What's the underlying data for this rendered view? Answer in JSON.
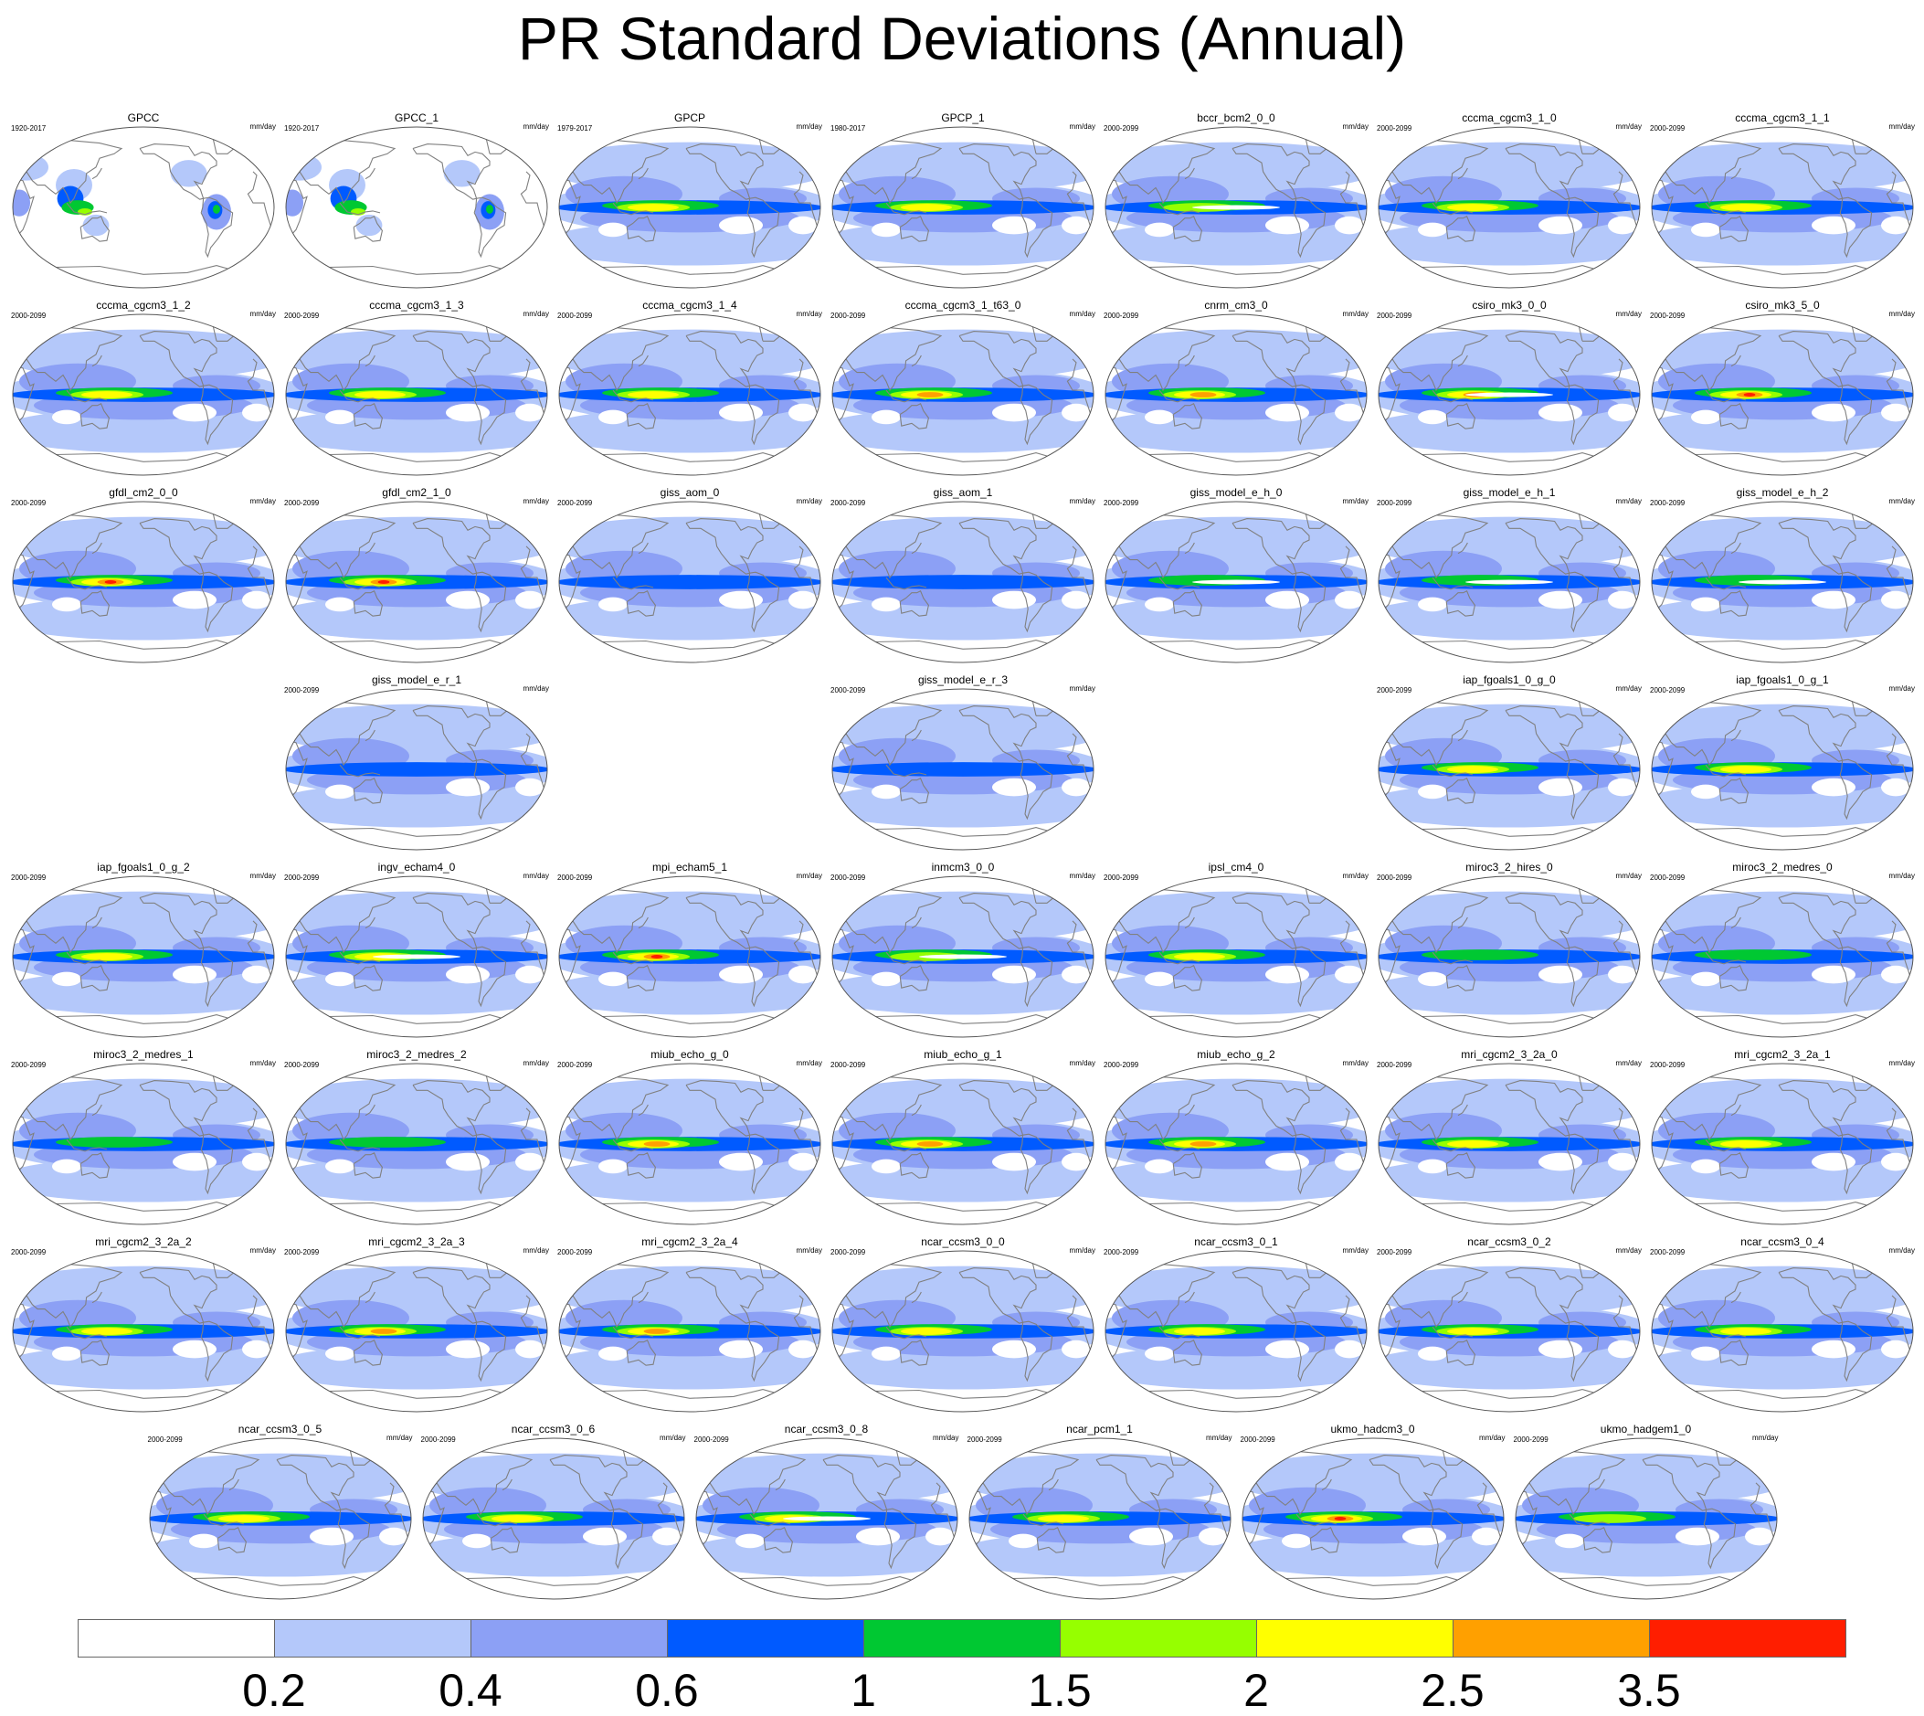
{
  "title": "PR Standard Deviations (Annual)",
  "unit_label": "mm/day",
  "colors": {
    "levels": [
      "#ffffff",
      "#b4c8fa",
      "#8ca0f5",
      "#005aff",
      "#00c832",
      "#96ff00",
      "#ffff00",
      "#ffa000",
      "#ff1e00"
    ],
    "coast": "#808080",
    "outline": "#555555"
  },
  "chart_data": {
    "type": "heatmap",
    "variable": "PR",
    "statistic": "Standard Deviations",
    "period": "Annual",
    "legend": {
      "tick_labels": [
        "0.2",
        "0.4",
        "0.6",
        "1",
        "1.5",
        "2",
        "2.5",
        "3.5"
      ],
      "level_count": 9,
      "placement": "bottom"
    },
    "panels": [
      {
        "name": "GPCC",
        "years": "1920-2017",
        "row": 0,
        "col": 0,
        "max_level": 5,
        "type": "obs_land"
      },
      {
        "name": "GPCC_1",
        "years": "1920-2017",
        "row": 0,
        "col": 1,
        "max_level": 5,
        "type": "obs_land"
      },
      {
        "name": "GPCP",
        "years": "1979-2017",
        "row": 0,
        "col": 2,
        "max_level": 6
      },
      {
        "name": "GPCP_1",
        "years": "1980-2017",
        "row": 0,
        "col": 3,
        "max_level": 6
      },
      {
        "name": "bccr_bcm2_0_0",
        "years": "2000-2099",
        "row": 0,
        "col": 4,
        "max_level": 5,
        "white_band": true
      },
      {
        "name": "cccma_cgcm3_1_0",
        "years": "2000-2099",
        "row": 0,
        "col": 5,
        "max_level": 6
      },
      {
        "name": "cccma_cgcm3_1_1",
        "years": "2000-2099",
        "row": 0,
        "col": 6,
        "max_level": 6
      },
      {
        "name": "cccma_cgcm3_1_2",
        "years": "2000-2099",
        "row": 1,
        "col": 0,
        "max_level": 6
      },
      {
        "name": "cccma_cgcm3_1_3",
        "years": "2000-2099",
        "row": 1,
        "col": 1,
        "max_level": 6
      },
      {
        "name": "cccma_cgcm3_1_4",
        "years": "2000-2099",
        "row": 1,
        "col": 2,
        "max_level": 6
      },
      {
        "name": "cccma_cgcm3_1_t63_0",
        "years": "2000-2099",
        "row": 1,
        "col": 3,
        "max_level": 7
      },
      {
        "name": "cnrm_cm3_0",
        "years": "2000-2099",
        "row": 1,
        "col": 4,
        "max_level": 7
      },
      {
        "name": "csiro_mk3_0_0",
        "years": "2000-2099",
        "row": 1,
        "col": 5,
        "max_level": 8,
        "white_band": true
      },
      {
        "name": "csiro_mk3_5_0",
        "years": "2000-2099",
        "row": 1,
        "col": 6,
        "max_level": 8
      },
      {
        "name": "gfdl_cm2_0_0",
        "years": "2000-2099",
        "row": 2,
        "col": 0,
        "max_level": 8
      },
      {
        "name": "gfdl_cm2_1_0",
        "years": "2000-2099",
        "row": 2,
        "col": 1,
        "max_level": 8
      },
      {
        "name": "giss_aom_0",
        "years": "2000-2099",
        "row": 2,
        "col": 2,
        "max_level": 3
      },
      {
        "name": "giss_aom_1",
        "years": "2000-2099",
        "row": 2,
        "col": 3,
        "max_level": 3
      },
      {
        "name": "giss_model_e_h_0",
        "years": "2000-2099",
        "row": 2,
        "col": 4,
        "max_level": 4,
        "white_band": true
      },
      {
        "name": "giss_model_e_h_1",
        "years": "2000-2099",
        "row": 2,
        "col": 5,
        "max_level": 4,
        "white_band": true
      },
      {
        "name": "giss_model_e_h_2",
        "years": "2000-2099",
        "row": 2,
        "col": 6,
        "max_level": 4,
        "white_band": true
      },
      {
        "name": "giss_model_e_r_1",
        "years": "2000-2099",
        "row": 3,
        "col": 1,
        "max_level": 3
      },
      {
        "name": "giss_model_e_r_3",
        "years": "2000-2099",
        "row": 3,
        "col": 3,
        "max_level": 3
      },
      {
        "name": "iap_fgoals1_0_g_0",
        "years": "2000-2099",
        "row": 3,
        "col": 5,
        "max_level": 6
      },
      {
        "name": "iap_fgoals1_0_g_1",
        "years": "2000-2099",
        "row": 3,
        "col": 6,
        "max_level": 6
      },
      {
        "name": "iap_fgoals1_0_g_2",
        "years": "2000-2099",
        "row": 4,
        "col": 0,
        "max_level": 6
      },
      {
        "name": "ingv_echam4_0",
        "years": "2000-2099",
        "row": 4,
        "col": 1,
        "max_level": 6,
        "white_band": true
      },
      {
        "name": "mpi_echam5_1",
        "years": "2000-2099",
        "row": 4,
        "col": 2,
        "max_level": 8
      },
      {
        "name": "inmcm3_0_0",
        "years": "2000-2099",
        "row": 4,
        "col": 3,
        "max_level": 5,
        "white_band": true
      },
      {
        "name": "ipsl_cm4_0",
        "years": "2000-2099",
        "row": 4,
        "col": 4,
        "max_level": 6
      },
      {
        "name": "miroc3_2_hires_0",
        "years": "2000-2099",
        "row": 4,
        "col": 5,
        "max_level": 4
      },
      {
        "name": "miroc3_2_medres_0",
        "years": "2000-2099",
        "row": 4,
        "col": 6,
        "max_level": 4
      },
      {
        "name": "miroc3_2_medres_1",
        "years": "2000-2099",
        "row": 5,
        "col": 0,
        "max_level": 4
      },
      {
        "name": "miroc3_2_medres_2",
        "years": "2000-2099",
        "row": 5,
        "col": 1,
        "max_level": 4
      },
      {
        "name": "miub_echo_g_0",
        "years": "2000-2099",
        "row": 5,
        "col": 2,
        "max_level": 7
      },
      {
        "name": "miub_echo_g_1",
        "years": "2000-2099",
        "row": 5,
        "col": 3,
        "max_level": 7
      },
      {
        "name": "miub_echo_g_2",
        "years": "2000-2099",
        "row": 5,
        "col": 4,
        "max_level": 7
      },
      {
        "name": "mri_cgcm2_3_2a_0",
        "years": "2000-2099",
        "row": 5,
        "col": 5,
        "max_level": 6
      },
      {
        "name": "mri_cgcm2_3_2a_1",
        "years": "2000-2099",
        "row": 5,
        "col": 6,
        "max_level": 6
      },
      {
        "name": "mri_cgcm2_3_2a_2",
        "years": "2000-2099",
        "row": 6,
        "col": 0,
        "max_level": 6
      },
      {
        "name": "mri_cgcm2_3_2a_3",
        "years": "2000-2099",
        "row": 6,
        "col": 1,
        "max_level": 7
      },
      {
        "name": "mri_cgcm2_3_2a_4",
        "years": "2000-2099",
        "row": 6,
        "col": 2,
        "max_level": 7
      },
      {
        "name": "ncar_ccsm3_0_0",
        "years": "2000-2099",
        "row": 6,
        "col": 3,
        "max_level": 6
      },
      {
        "name": "ncar_ccsm3_0_1",
        "years": "2000-2099",
        "row": 6,
        "col": 4,
        "max_level": 6
      },
      {
        "name": "ncar_ccsm3_0_2",
        "years": "2000-2099",
        "row": 6,
        "col": 5,
        "max_level": 6
      },
      {
        "name": "ncar_ccsm3_0_4",
        "years": "2000-2099",
        "row": 6,
        "col": 6,
        "max_level": 6
      },
      {
        "name": "ncar_ccsm3_0_5",
        "years": "2000-2099",
        "row": 7,
        "col": 0.5,
        "max_level": 6
      },
      {
        "name": "ncar_ccsm3_0_6",
        "years": "2000-2099",
        "row": 7,
        "col": 1.5,
        "max_level": 6
      },
      {
        "name": "ncar_ccsm3_0_8",
        "years": "2000-2099",
        "row": 7,
        "col": 2.5,
        "max_level": 6,
        "white_band": true
      },
      {
        "name": "ncar_pcm1_1",
        "years": "2000-2099",
        "row": 7,
        "col": 3.5,
        "max_level": 6
      },
      {
        "name": "ukmo_hadcm3_0",
        "years": "2000-2099",
        "row": 7,
        "col": 4.5,
        "max_level": 8
      },
      {
        "name": "ukmo_hadgem1_0",
        "years": "2000-2099",
        "row": 7,
        "col": 5.5,
        "max_level": 5
      }
    ]
  }
}
